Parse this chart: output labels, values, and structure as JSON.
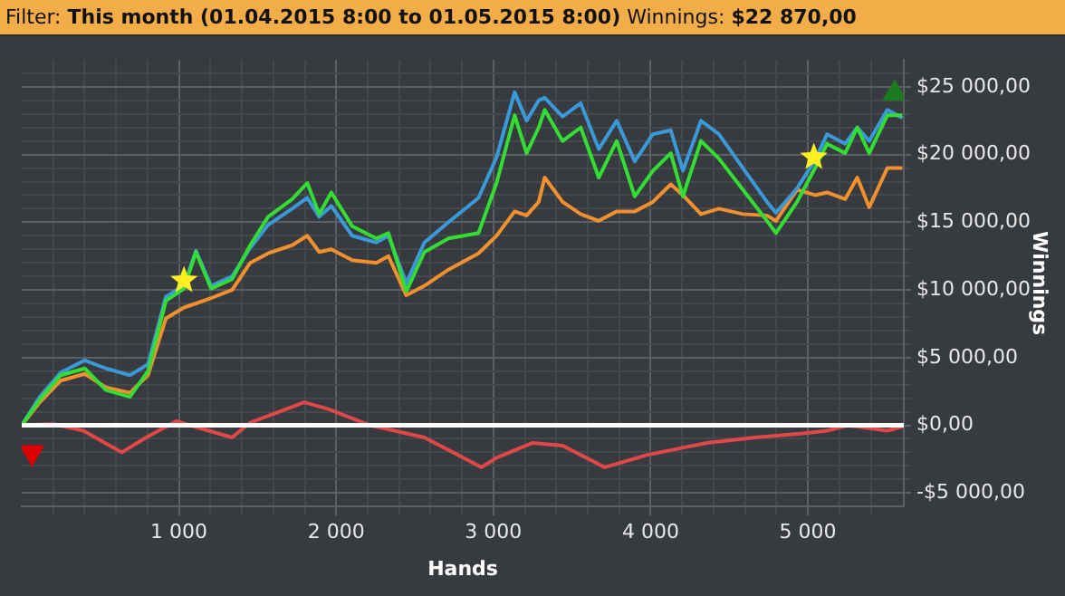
{
  "chart_data": {
    "type": "line",
    "title": "Filter: This month (01.04.2015 8:00 to 01.05.2015 8:00)",
    "subtitle": "Winnings: $22 870,00",
    "xlabel": "Hands",
    "ylabel": "Winnings",
    "xlim": [
      0,
      5610
    ],
    "ylim": [
      -6000,
      27000
    ],
    "xticks": [
      {
        "value": 200,
        "label": null
      },
      {
        "value": 400,
        "label": null
      },
      {
        "value": 600,
        "label": null
      },
      {
        "value": 800,
        "label": null
      },
      {
        "value": 1000,
        "label": "1 000"
      },
      {
        "value": 1200,
        "label": null
      },
      {
        "value": 1400,
        "label": null
      },
      {
        "value": 1600,
        "label": null
      },
      {
        "value": 1800,
        "label": null
      },
      {
        "value": 2000,
        "label": "2 000"
      },
      {
        "value": 2200,
        "label": null
      },
      {
        "value": 2400,
        "label": null
      },
      {
        "value": 2600,
        "label": null
      },
      {
        "value": 2800,
        "label": null
      },
      {
        "value": 3000,
        "label": "3 000"
      },
      {
        "value": 3200,
        "label": null
      },
      {
        "value": 3400,
        "label": null
      },
      {
        "value": 3600,
        "label": null
      },
      {
        "value": 3800,
        "label": null
      },
      {
        "value": 4000,
        "label": "4 000"
      },
      {
        "value": 4200,
        "label": null
      },
      {
        "value": 4400,
        "label": null
      },
      {
        "value": 4600,
        "label": null
      },
      {
        "value": 4800,
        "label": null
      },
      {
        "value": 5000,
        "label": "5 000"
      },
      {
        "value": 5200,
        "label": null
      },
      {
        "value": 5400,
        "label": null
      }
    ],
    "yticks": [
      {
        "value": -5000,
        "label": "-$5 000,00"
      },
      {
        "value": -4000,
        "label": null
      },
      {
        "value": -3000,
        "label": null
      },
      {
        "value": -2000,
        "label": null
      },
      {
        "value": -1000,
        "label": null
      },
      {
        "value": 0,
        "label": "$0,00"
      },
      {
        "value": 1000,
        "label": null
      },
      {
        "value": 2000,
        "label": null
      },
      {
        "value": 3000,
        "label": null
      },
      {
        "value": 4000,
        "label": null
      },
      {
        "value": 5000,
        "label": "$5 000,00"
      },
      {
        "value": 6000,
        "label": null
      },
      {
        "value": 7000,
        "label": null
      },
      {
        "value": 8000,
        "label": null
      },
      {
        "value": 9000,
        "label": null
      },
      {
        "value": 10000,
        "label": "$10 000,00"
      },
      {
        "value": 11000,
        "label": null
      },
      {
        "value": 12000,
        "label": null
      },
      {
        "value": 13000,
        "label": null
      },
      {
        "value": 14000,
        "label": null
      },
      {
        "value": 15000,
        "label": "$15 000,00"
      },
      {
        "value": 16000,
        "label": null
      },
      {
        "value": 17000,
        "label": null
      },
      {
        "value": 18000,
        "label": null
      },
      {
        "value": 19000,
        "label": null
      },
      {
        "value": 20000,
        "label": "$20 000,00"
      },
      {
        "value": 21000,
        "label": null
      },
      {
        "value": 22000,
        "label": null
      },
      {
        "value": 23000,
        "label": null
      },
      {
        "value": 24000,
        "label": null
      },
      {
        "value": 25000,
        "label": "$25 000,00"
      },
      {
        "value": 26000,
        "label": null
      }
    ],
    "grid": true,
    "legend": false,
    "marker": "none",
    "line_style": "solid",
    "ref_lines": [
      {
        "axis": "y",
        "value": 0,
        "color": "#ffffff"
      }
    ],
    "series": [
      {
        "color": "#e04848",
        "x": [
          0,
          199,
          392,
          637,
          791,
          982,
          1338,
          1453,
          1797,
          1950,
          2217,
          2561,
          2924,
          3020,
          3250,
          3440,
          3708,
          3976,
          4358,
          4664,
          4970,
          5122,
          5256,
          5505,
          5601
        ],
        "values": [
          0,
          100,
          -400,
          -2000,
          -900,
          300,
          -900,
          200,
          1700,
          1200,
          0,
          -900,
          -3100,
          -2400,
          -1300,
          -1500,
          -3100,
          -2200,
          -1300,
          -900,
          -600,
          -400,
          0,
          -400,
          -100
        ]
      },
      {
        "color": "#f0902f",
        "x": [
          0,
          115,
          248,
          401,
          535,
          688,
          803,
          917,
          1032,
          1108,
          1204,
          1338,
          1453,
          1567,
          1720,
          1816,
          1892,
          1969,
          2102,
          2255,
          2332,
          2446,
          2561,
          2714,
          2905,
          3020,
          3135,
          3211,
          3288,
          3326,
          3440,
          3555,
          3670,
          3784,
          3899,
          4014,
          4128,
          4205,
          4320,
          4434,
          4587,
          4740,
          4797,
          4931,
          5046,
          5122,
          5237,
          5314,
          5390,
          5505,
          5601
        ],
        "values": [
          0,
          1700,
          3300,
          3800,
          2800,
          2400,
          3700,
          7900,
          8700,
          9000,
          9400,
          10000,
          12000,
          12700,
          13300,
          14000,
          12800,
          13000,
          12200,
          12000,
          12500,
          9600,
          10300,
          11500,
          12700,
          14000,
          15800,
          15500,
          16500,
          18300,
          16500,
          15600,
          15100,
          15800,
          15800,
          16500,
          17800,
          17000,
          15600,
          16000,
          15600,
          15500,
          15100,
          17400,
          17000,
          17200,
          16700,
          18300,
          16100,
          19000,
          19000
        ]
      },
      {
        "color": "#3a9ad9",
        "x": [
          0,
          115,
          248,
          401,
          535,
          688,
          803,
          917,
          1032,
          1108,
          1204,
          1338,
          1453,
          1567,
          1720,
          1816,
          1892,
          1969,
          2102,
          2255,
          2332,
          2446,
          2561,
          2714,
          2905,
          3020,
          3135,
          3211,
          3288,
          3326,
          3440,
          3555,
          3670,
          3784,
          3899,
          4014,
          4128,
          4205,
          4320,
          4434,
          4587,
          4740,
          4797,
          4931,
          5046,
          5122,
          5237,
          5314,
          5390,
          5505,
          5601
        ],
        "values": [
          0,
          2100,
          3900,
          4800,
          4200,
          3700,
          4500,
          9500,
          10300,
          12900,
          10300,
          11000,
          13100,
          14800,
          16000,
          16800,
          15400,
          16200,
          14000,
          13500,
          14000,
          10500,
          13500,
          15000,
          16800,
          19800,
          24600,
          22500,
          24000,
          24200,
          22800,
          23800,
          20400,
          22500,
          19500,
          21500,
          21800,
          18800,
          22500,
          21500,
          19000,
          16500,
          15700,
          17500,
          19600,
          21500,
          20800,
          22000,
          21000,
          23300,
          22700
        ]
      },
      {
        "color": "#33dd33",
        "x": [
          0,
          115,
          248,
          401,
          535,
          688,
          803,
          917,
          1032,
          1108,
          1204,
          1338,
          1453,
          1567,
          1720,
          1816,
          1892,
          1969,
          2102,
          2255,
          2332,
          2446,
          2561,
          2714,
          2905,
          3020,
          3135,
          3211,
          3288,
          3326,
          3440,
          3555,
          3670,
          3784,
          3899,
          4014,
          4128,
          4205,
          4320,
          4434,
          4587,
          4740,
          4797,
          4931,
          5046,
          5122,
          5237,
          5314,
          5390,
          5505,
          5601
        ],
        "values": [
          0,
          1900,
          3700,
          4200,
          2600,
          2100,
          4000,
          9200,
          10100,
          12800,
          10100,
          10800,
          13300,
          15400,
          16700,
          17900,
          15600,
          17200,
          14700,
          13800,
          14200,
          9900,
          12800,
          13800,
          14200,
          17900,
          22900,
          20100,
          22000,
          23300,
          21000,
          22000,
          18300,
          21000,
          16900,
          18800,
          20100,
          16900,
          21000,
          19700,
          17400,
          15100,
          14200,
          16500,
          19000,
          20800,
          20100,
          22000,
          20100,
          22900,
          22900
        ]
      },
      {
        "type": "scatter",
        "marker": "star",
        "color": "#ffee22",
        "x": [
          1032,
          5038
        ],
        "values": [
          10700,
          19800
        ]
      },
      {
        "type": "scatter",
        "marker": "triangle",
        "color": "#1e7a1e",
        "x": [
          5552
        ],
        "values": [
          24500
        ]
      },
      {
        "type": "scatter",
        "marker": "triangle",
        "color": "#dd0000",
        "x": [
          65
        ],
        "values": [
          -2000
        ]
      }
    ]
  }
}
